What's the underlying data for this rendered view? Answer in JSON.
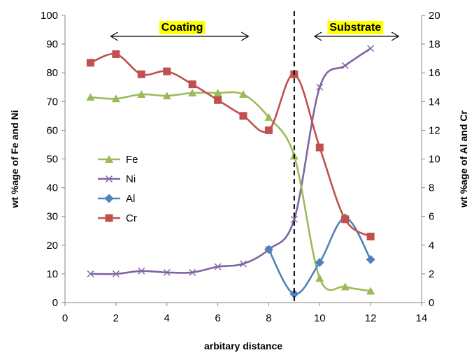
{
  "chart_data": {
    "type": "line",
    "xlabel": "arbitary distance",
    "ylabel_left": "wt %age of Fe and Ni",
    "ylabel_right": "wt %age of Al and Cr",
    "xlim": [
      0,
      14
    ],
    "ylim_left": [
      0,
      100
    ],
    "ylim_right": [
      0,
      20
    ],
    "x_ticks": [
      "0",
      "2",
      "4",
      "6",
      "8",
      "10",
      "12",
      "14"
    ],
    "y_left_ticks": [
      "0",
      "10",
      "20",
      "30",
      "40",
      "50",
      "60",
      "70",
      "80",
      "90",
      "100"
    ],
    "y_right_ticks": [
      "0",
      "2",
      "4",
      "6",
      "8",
      "10",
      "12",
      "14",
      "16",
      "18",
      "20"
    ],
    "grid": false,
    "legend_position": "left-middle",
    "x": [
      1,
      2,
      3,
      4,
      5,
      6,
      7,
      8,
      9,
      10,
      11,
      12
    ],
    "series": [
      {
        "name": "Fe",
        "axis": "left",
        "color": "#9BBB59",
        "marker": "triangle",
        "values": [
          71.5,
          71,
          72.5,
          72,
          73,
          73,
          72.5,
          64.5,
          51,
          8.5,
          5.5,
          4
        ]
      },
      {
        "name": "Ni",
        "axis": "left",
        "color": "#8064A2",
        "marker": "x",
        "values": [
          10,
          10,
          11,
          10.5,
          10.5,
          12.5,
          13.5,
          18.5,
          29,
          75,
          82.5,
          88.5
        ]
      },
      {
        "name": "Al",
        "axis": "right",
        "color": "#4F81BD",
        "marker": "diamond",
        "values": [
          null,
          null,
          null,
          null,
          null,
          null,
          null,
          3.7,
          0.6,
          2.8,
          5.9,
          3.0
        ]
      },
      {
        "name": "Cr",
        "axis": "right",
        "color": "#C0504D",
        "marker": "square",
        "values": [
          16.7,
          17.3,
          15.9,
          16.1,
          15.2,
          14.1,
          13.0,
          12.0,
          15.9,
          10.8,
          5.8,
          4.6
        ]
      }
    ],
    "annotations": {
      "divider_x": 9,
      "coating": {
        "label": "Coating",
        "x_from": 1.8,
        "x_to": 7.2,
        "label_x": 4.6,
        "highlight": "#FFFF00"
      },
      "substrate": {
        "label": "Substrate",
        "x_from": 9.8,
        "x_to": 13.1,
        "label_x": 11.4,
        "highlight": "#FFFF00"
      }
    }
  }
}
